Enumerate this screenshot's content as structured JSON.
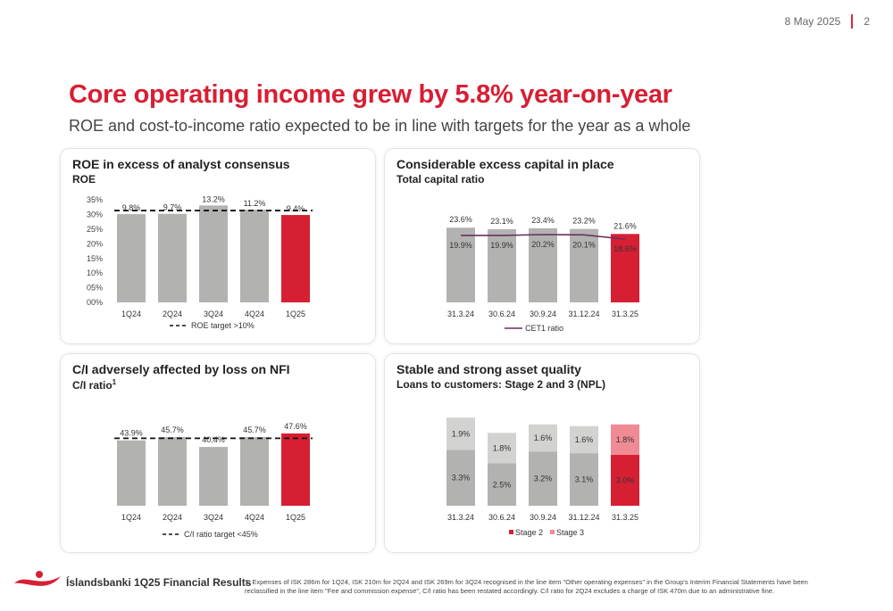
{
  "header": {
    "date": "8 May 2025",
    "page": "2"
  },
  "title": "Core operating income grew by 5.8% year-on-year",
  "subtitle": "ROE and cost-to-income ratio expected to be in line with targets for the year as a whole",
  "panels": {
    "roe": {
      "title": "ROE in excess of analyst consensus",
      "subtitle": "ROE"
    },
    "capital": {
      "title": "Considerable excess capital in place",
      "subtitle": "Total capital ratio"
    },
    "ci": {
      "title": "C/I adversely affected by loss on NFI",
      "subtitle": "C/I ratio",
      "superscript": "1"
    },
    "asset": {
      "title": "Stable and strong asset quality",
      "subtitle": "Loans to customers: Stage 2 and 3 (NPL)"
    }
  },
  "colors": {
    "accent": "#d71f34",
    "bar": "#b2b3b0",
    "stage3": "#d2d3d1",
    "stage3_highlight": "#f08b94",
    "line": "#6b2f5e"
  },
  "footer": {
    "brand": "Íslandsbanki 1Q25 Financial Results",
    "note": "1. Expenses of ISK 286m for 1Q24, ISK 210m for 2Q24 and ISK 269m for 3Q24 recognised in the line item \"Other operating expenses\" in the Group's Interim Financial Statements have been reclassified in the line item \"Fee and commission expense\", C/I ratio has been restated accordingly. C/I ratio for 2Q24 excludes a charge of ISK 470m due to an administrative fine."
  },
  "chart_data": [
    {
      "id": "roe",
      "type": "bar",
      "categories": [
        "1Q24",
        "2Q24",
        "3Q24",
        "4Q24",
        "1Q25"
      ],
      "values": [
        9.8,
        9.7,
        13.2,
        11.2,
        9.4
      ],
      "value_labels": [
        "9.8%",
        "9.7%",
        "13.2%",
        "11.2%",
        "9.4%"
      ],
      "y_ticks": [
        "00%",
        "05%",
        "10%",
        "15%",
        "20%",
        "25%",
        "30%",
        "35%"
      ],
      "target_label": "ROE target >10%",
      "target": 10,
      "highlight_index": 4
    },
    {
      "id": "capital",
      "type": "bar",
      "categories": [
        "31.3.24",
        "30.6.24",
        "30.9.24",
        "31.12.24",
        "31.3.25"
      ],
      "values": [
        23.6,
        23.1,
        23.4,
        23.2,
        21.6
      ],
      "value_labels": [
        "23.6%",
        "23.1%",
        "23.4%",
        "23.2%",
        "21.6%"
      ],
      "series": [
        {
          "name": "CET1 ratio",
          "type": "line",
          "values": [
            19.9,
            19.9,
            20.2,
            20.1,
            18.6
          ],
          "labels": [
            "19.9%",
            "19.9%",
            "20.2%",
            "20.1%",
            "18.6%"
          ]
        }
      ],
      "highlight_index": 4
    },
    {
      "id": "ci",
      "type": "bar",
      "categories": [
        "1Q24",
        "2Q24",
        "3Q24",
        "4Q24",
        "1Q25"
      ],
      "values": [
        43.9,
        45.7,
        40.4,
        45.7,
        47.6
      ],
      "value_labels": [
        "43.9%",
        "45.7%",
        "40.4%",
        "45.7%",
        "47.6%"
      ],
      "target_label": "C/I ratio target <45%",
      "target": 45,
      "highlight_index": 4
    },
    {
      "id": "asset",
      "type": "stacked-bar",
      "categories": [
        "31.3.24",
        "30.6.24",
        "30.9.24",
        "31.12.24",
        "31.3.25"
      ],
      "series": [
        {
          "name": "Stage 2",
          "values": [
            3.3,
            2.5,
            3.2,
            3.1,
            3.0
          ],
          "labels": [
            "3.3%",
            "2.5%",
            "3.2%",
            "3.1%",
            "3.0%"
          ]
        },
        {
          "name": "Stage 3",
          "values": [
            1.9,
            1.8,
            1.6,
            1.6,
            1.8
          ],
          "labels": [
            "1.9%",
            "1.8%",
            "1.6%",
            "1.6%",
            "1.8%"
          ]
        }
      ],
      "highlight_index": 4
    }
  ]
}
